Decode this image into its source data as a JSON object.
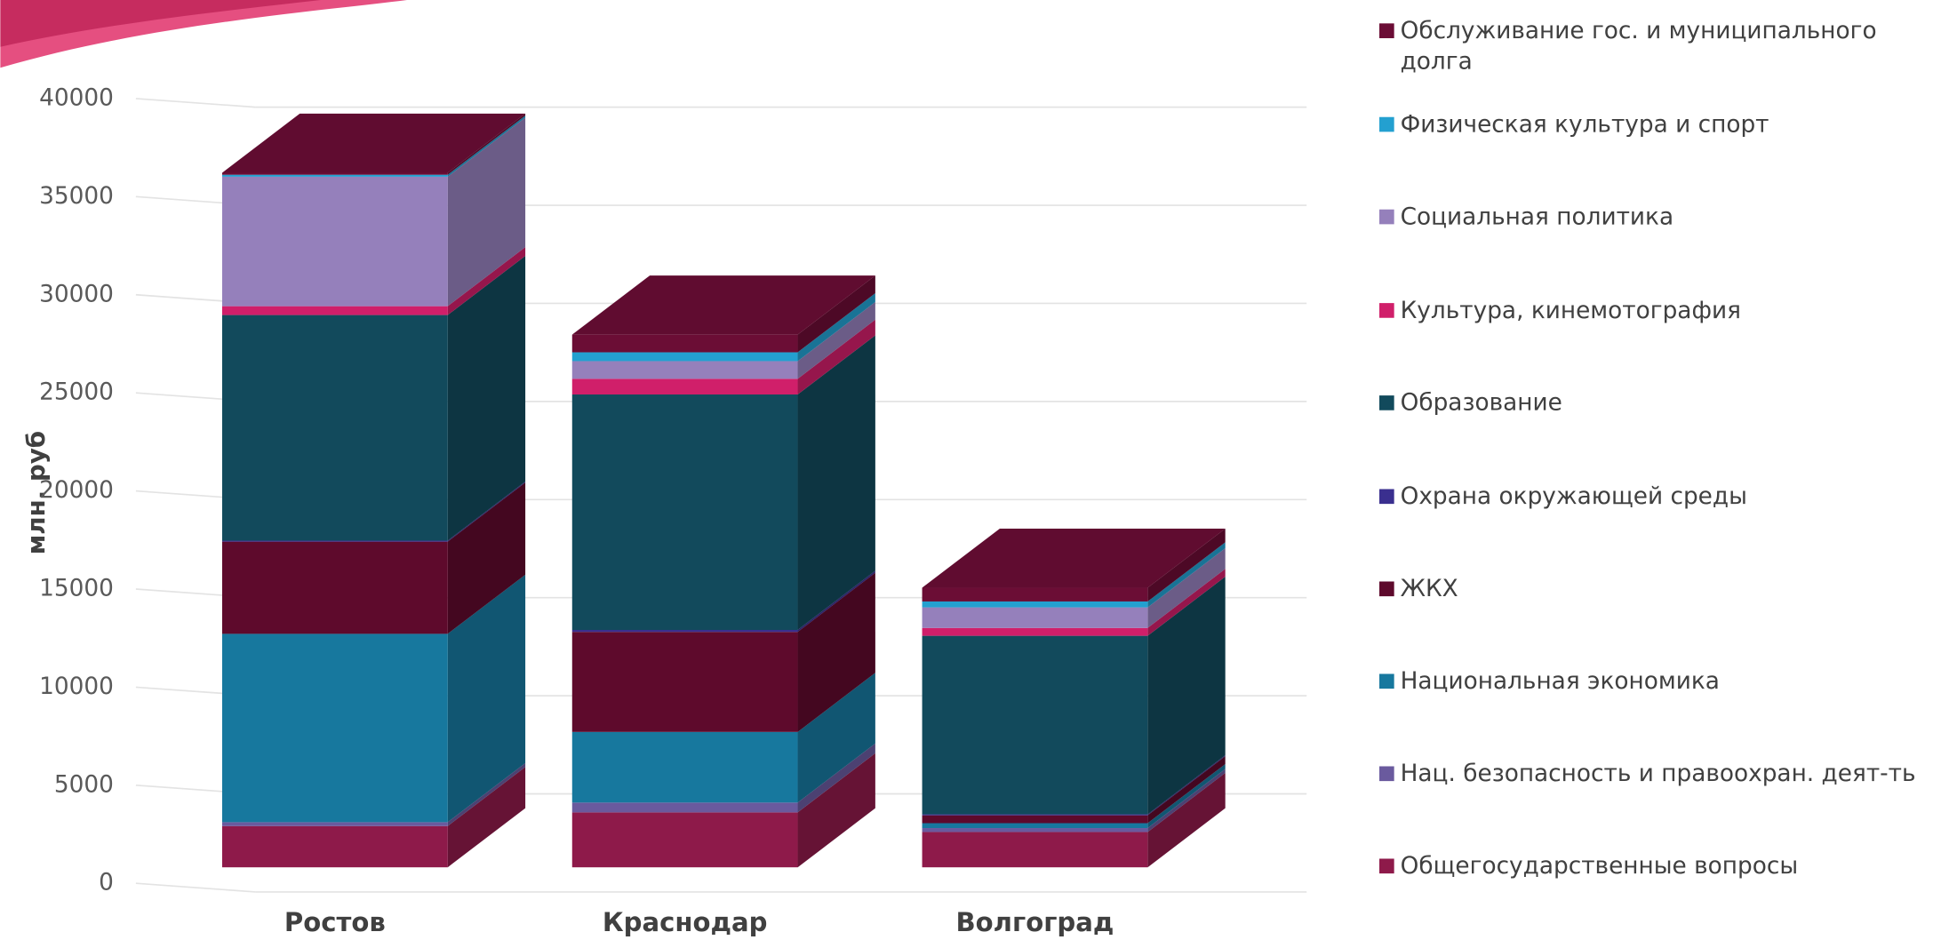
{
  "chart_data": {
    "type": "bar3d_stacked",
    "y_label": "млн. руб",
    "categories": [
      "Ростов",
      "Краснодар",
      "Волгоград"
    ],
    "ylim": [
      0,
      40000
    ],
    "yticks": [
      0,
      5000,
      10000,
      15000,
      20000,
      25000,
      30000,
      35000,
      40000
    ],
    "grid": true,
    "legend_position": "right",
    "series": [
      {
        "name": "Общегосударственные вопросы",
        "color": "#8e1a4a",
        "values": [
          2100,
          2800,
          1800
        ]
      },
      {
        "name": "Нац. безопасность и правоохран. деят-ть",
        "color": "#6a5a9e",
        "values": [
          200,
          500,
          200
        ]
      },
      {
        "name": "Национальная экономика",
        "color": "#17789e",
        "values": [
          9600,
          3600,
          250
        ]
      },
      {
        "name": "ЖКХ",
        "color": "#5e0a2c",
        "values": [
          4700,
          5100,
          400
        ]
      },
      {
        "name": "Охрана окружающей среды",
        "color": "#3a2f8f",
        "values": [
          50,
          100,
          50
        ]
      },
      {
        "name": "Образование",
        "color": "#124a5c",
        "values": [
          11500,
          12000,
          9100
        ]
      },
      {
        "name": "Культура, кинемотография",
        "color": "#d01f6a",
        "values": [
          450,
          800,
          400
        ]
      },
      {
        "name": "Социальная политика",
        "color": "#9580bb",
        "values": [
          6600,
          900,
          1050
        ]
      },
      {
        "name": "Физическая культура и спорт",
        "color": "#23a0d0",
        "values": [
          100,
          450,
          300
        ]
      },
      {
        "name": "Обслуживание гос. и муниципального долга",
        "color": "#6b0d35",
        "values": [
          100,
          900,
          700
        ]
      }
    ]
  }
}
